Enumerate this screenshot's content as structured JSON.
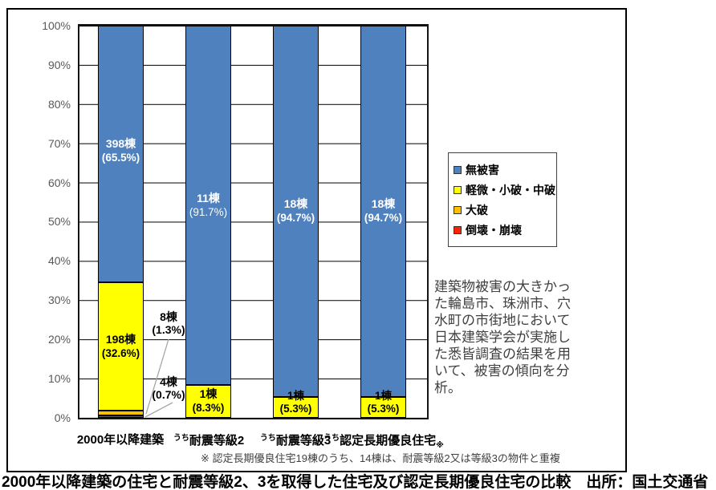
{
  "colors": {
    "blue": "#4E81BD",
    "yellow": "#FFFF00",
    "orange": "#FFC000",
    "red": "#FF2200"
  },
  "y_axis": {
    "ticks": [
      "100%",
      "90%",
      "80%",
      "70%",
      "60%",
      "50%",
      "40%",
      "30%",
      "20%",
      "10%",
      "0%"
    ]
  },
  "x_axis": {
    "labels": [
      {
        "prefix": "",
        "main": "2000年以降建築",
        "suffix": ""
      },
      {
        "prefix": "うち",
        "main": "耐震等級2",
        "suffix": ""
      },
      {
        "prefix": "うち",
        "main": "耐震等級3",
        "suffix": ""
      },
      {
        "prefix": "うち",
        "main": "認定長期優良住宅",
        "suffix": "※"
      }
    ]
  },
  "labels": {
    "bar1_blue_count": "398棟",
    "bar1_blue_pct": "(65.5%)",
    "bar1_yellow_count": "198棟",
    "bar1_yellow_pct": "(32.6%)",
    "bar2_blue_count": "11棟",
    "bar2_blue_pct": "(91.7%)",
    "bar2_yellow_count": "1棟",
    "bar2_yellow_pct": "(8.3%)",
    "bar3_blue_count": "18棟",
    "bar3_blue_pct": "(94.7%)",
    "bar3_yellow_count": "1棟",
    "bar3_yellow_pct": "(5.3%)",
    "bar4_blue_count": "18棟",
    "bar4_blue_pct": "(94.7%)",
    "bar4_yellow_count": "1棟",
    "bar4_yellow_pct": "(5.3%)",
    "callout_orange_count": "8棟",
    "callout_orange_pct": "(1.3%)",
    "callout_red_count": "4棟",
    "callout_red_pct": "(0.7%)"
  },
  "legend": {
    "items": [
      {
        "label": "無被害",
        "color": "#4E81BD"
      },
      {
        "label": "軽微・小破・中破",
        "color": "#FFFF00"
      },
      {
        "label": "大破",
        "color": "#FFC000"
      },
      {
        "label": "倒壊・崩壊",
        "color": "#FF2200"
      }
    ]
  },
  "annotation": "建築物被害の大きかった輪島市、珠洲市、穴水町の市街地において日本建築学会が実施した悉皆調査の結果を用いて、被害の傾向を分析。",
  "footnote": "※ 認定長期優良住宅19棟のうち、14棟は、耐震等級2又は等級3の物件と重複",
  "caption": "2000年以降建築の住宅と耐震等級2、3を取得した住宅及び認定長期優良住宅の比較　出所：国土交通省",
  "chart_data": {
    "type": "bar",
    "stacked": true,
    "unit_percent": true,
    "title": "",
    "xlabel": "",
    "ylabel": "",
    "ylim": [
      0,
      100
    ],
    "ytick_step": 10,
    "grid": "horizontal",
    "legend_position": "right",
    "categories": [
      "2000年以降建築",
      "うち耐震等級2",
      "うち耐震等級3",
      "うち認定長期優良住宅※"
    ],
    "series": [
      {
        "name": "倒壊・崩壊",
        "color": "#FF2200",
        "counts": [
          4,
          0,
          0,
          0
        ],
        "percents": [
          0.7,
          0,
          0,
          0
        ]
      },
      {
        "name": "大破",
        "color": "#FFC000",
        "counts": [
          8,
          0,
          0,
          0
        ],
        "percents": [
          1.3,
          0,
          0,
          0
        ]
      },
      {
        "name": "軽微・小破・中破",
        "color": "#FFFF00",
        "counts": [
          198,
          1,
          1,
          1
        ],
        "percents": [
          32.6,
          8.3,
          5.3,
          5.3
        ]
      },
      {
        "name": "無被害",
        "color": "#4E81BD",
        "counts": [
          398,
          11,
          18,
          18
        ],
        "percents": [
          65.5,
          91.7,
          94.7,
          94.7
        ]
      }
    ]
  }
}
